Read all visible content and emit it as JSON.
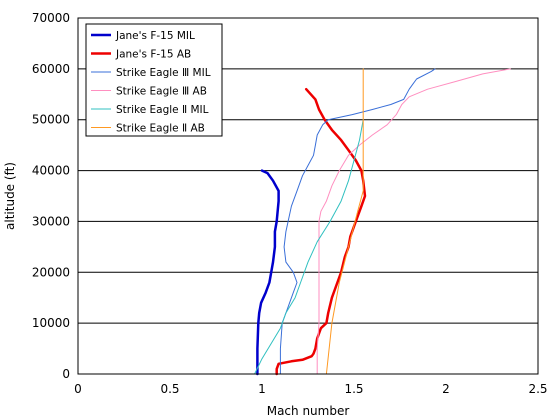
{
  "chart_data": {
    "type": "line",
    "title": "",
    "xlabel": "Mach number",
    "ylabel": "altitude (ft)",
    "xlim": [
      0,
      2.5
    ],
    "ylim": [
      0,
      70000
    ],
    "x_ticks": [
      "0",
      "0.5",
      "1",
      "1.5",
      "2",
      "2.5"
    ],
    "y_ticks": [
      "0",
      "10000",
      "20000",
      "30000",
      "40000",
      "50000",
      "60000",
      "70000"
    ],
    "grid": "horizontal",
    "legend_position": "top-left",
    "series": [
      {
        "name": "Jane's F-15 MIL",
        "color": "#0000cc",
        "stroke_width": 2.5,
        "points": [
          [
            0.975,
            0
          ],
          [
            0.975,
            5000
          ],
          [
            0.98,
            10000
          ],
          [
            0.985,
            12000
          ],
          [
            0.995,
            14000
          ],
          [
            1.02,
            16000
          ],
          [
            1.04,
            18000
          ],
          [
            1.05,
            20000
          ],
          [
            1.06,
            22000
          ],
          [
            1.07,
            25000
          ],
          [
            1.07,
            28000
          ],
          [
            1.08,
            30000
          ],
          [
            1.09,
            34000
          ],
          [
            1.09,
            36000
          ],
          [
            1.06,
            38000
          ],
          [
            1.03,
            39500
          ],
          [
            1.0,
            40000
          ]
        ]
      },
      {
        "name": "Jane's F-15 AB",
        "color": "#ee0000",
        "stroke_width": 2.5,
        "points": [
          [
            1.08,
            0
          ],
          [
            1.08,
            1000
          ],
          [
            1.09,
            2000
          ],
          [
            1.16,
            2500
          ],
          [
            1.22,
            2800
          ],
          [
            1.27,
            3500
          ],
          [
            1.28,
            4000
          ],
          [
            1.29,
            5000
          ],
          [
            1.3,
            7000
          ],
          [
            1.32,
            9000
          ],
          [
            1.35,
            10000
          ],
          [
            1.36,
            12000
          ],
          [
            1.38,
            15000
          ],
          [
            1.41,
            18000
          ],
          [
            1.43,
            20000
          ],
          [
            1.45,
            23000
          ],
          [
            1.47,
            25000
          ],
          [
            1.48,
            27000
          ],
          [
            1.51,
            30000
          ],
          [
            1.54,
            33000
          ],
          [
            1.56,
            35000
          ],
          [
            1.55,
            38000
          ],
          [
            1.54,
            40000
          ],
          [
            1.51,
            42000
          ],
          [
            1.47,
            44000
          ],
          [
            1.43,
            46000
          ],
          [
            1.38,
            48000
          ],
          [
            1.34,
            50000
          ],
          [
            1.31,
            52000
          ],
          [
            1.29,
            54000
          ],
          [
            1.24,
            56000
          ]
        ]
      },
      {
        "name": "Strike Eagle Ⅲ MIL",
        "color": "#3a6fd8",
        "stroke_width": 1,
        "points": [
          [
            1.1,
            0
          ],
          [
            1.1,
            5000
          ],
          [
            1.11,
            10000
          ],
          [
            1.13,
            12000
          ],
          [
            1.15,
            14000
          ],
          [
            1.17,
            16000
          ],
          [
            1.19,
            18000
          ],
          [
            1.17,
            20000
          ],
          [
            1.13,
            22000
          ],
          [
            1.12,
            25000
          ],
          [
            1.13,
            28000
          ],
          [
            1.16,
            33000
          ],
          [
            1.19,
            36000
          ],
          [
            1.22,
            39000
          ],
          [
            1.25,
            41000
          ],
          [
            1.28,
            43000
          ],
          [
            1.29,
            45000
          ],
          [
            1.3,
            47000
          ],
          [
            1.33,
            49000
          ],
          [
            1.36,
            50000
          ],
          [
            1.49,
            51000
          ],
          [
            1.6,
            52000
          ],
          [
            1.7,
            53000
          ],
          [
            1.77,
            54000
          ],
          [
            1.8,
            56000
          ],
          [
            1.82,
            57000
          ],
          [
            1.84,
            58000
          ],
          [
            1.92,
            59500
          ],
          [
            1.94,
            60000
          ]
        ]
      },
      {
        "name": "Strike Eagle Ⅲ AB",
        "color": "#ff8fc0",
        "stroke_width": 1,
        "points": [
          [
            1.3,
            0
          ],
          [
            1.3,
            5000
          ],
          [
            1.31,
            10000
          ],
          [
            1.31,
            15000
          ],
          [
            1.31,
            20000
          ],
          [
            1.31,
            25000
          ],
          [
            1.31,
            30000
          ],
          [
            1.32,
            32000
          ],
          [
            1.35,
            34000
          ],
          [
            1.38,
            37000
          ],
          [
            1.42,
            40000
          ],
          [
            1.47,
            43000
          ],
          [
            1.53,
            45000
          ],
          [
            1.6,
            47000
          ],
          [
            1.68,
            49000
          ],
          [
            1.73,
            51000
          ],
          [
            1.76,
            53000
          ],
          [
            1.8,
            54500
          ],
          [
            1.9,
            56000
          ],
          [
            2.05,
            57500
          ],
          [
            2.2,
            59000
          ],
          [
            2.35,
            60000
          ]
        ]
      },
      {
        "name": "Strike Eagle Ⅱ MIL",
        "color": "#30c0c0",
        "stroke_width": 1,
        "points": [
          [
            0.96,
            0
          ],
          [
            1.0,
            3000
          ],
          [
            1.05,
            6000
          ],
          [
            1.1,
            9000
          ],
          [
            1.13,
            12000
          ],
          [
            1.18,
            15000
          ],
          [
            1.21,
            18000
          ],
          [
            1.25,
            22000
          ],
          [
            1.3,
            26000
          ],
          [
            1.37,
            30000
          ],
          [
            1.43,
            34000
          ],
          [
            1.47,
            38000
          ],
          [
            1.5,
            42000
          ],
          [
            1.53,
            46000
          ],
          [
            1.55,
            50000
          ]
        ]
      },
      {
        "name": "Strike Eagle Ⅱ AB",
        "color": "#ff9922",
        "stroke_width": 1,
        "points": [
          [
            1.35,
            0
          ],
          [
            1.38,
            10000
          ],
          [
            1.42,
            18000
          ],
          [
            1.47,
            25000
          ],
          [
            1.52,
            32000
          ],
          [
            1.55,
            36000
          ],
          [
            1.55,
            40000
          ],
          [
            1.55,
            50000
          ],
          [
            1.55,
            60000
          ]
        ]
      }
    ]
  }
}
